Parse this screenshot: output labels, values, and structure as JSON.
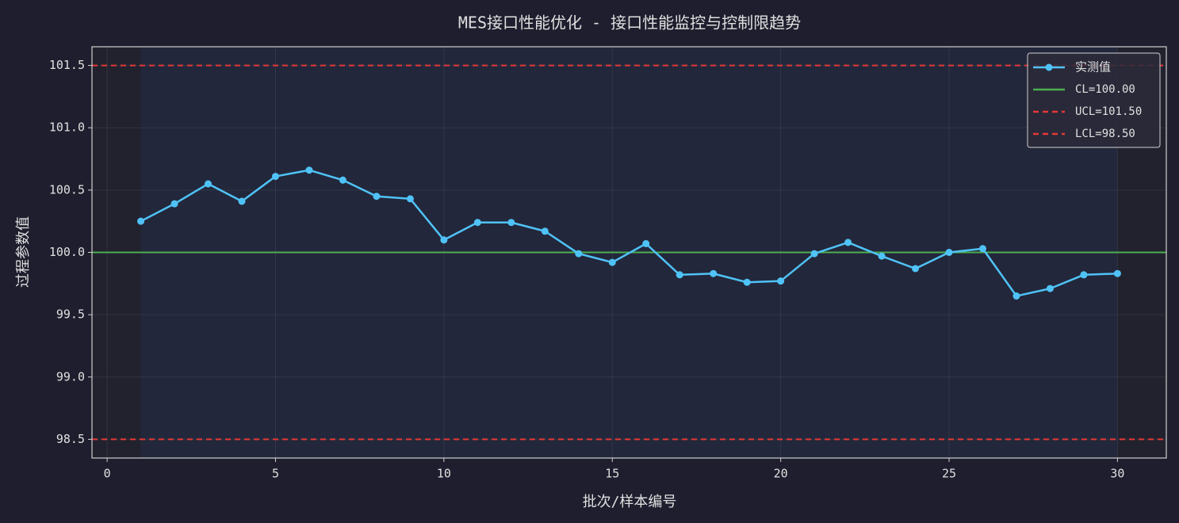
{
  "chart_data": {
    "type": "line",
    "title": "MES接口性能优化 - 接口性能监控与控制限趋势",
    "x_label": "批次/样本编号",
    "y_label": "过程参数值",
    "x": [
      1,
      2,
      3,
      4,
      5,
      6,
      7,
      8,
      9,
      10,
      11,
      12,
      13,
      14,
      15,
      16,
      17,
      18,
      19,
      20,
      21,
      22,
      23,
      24,
      25,
      26,
      27,
      28,
      29,
      30
    ],
    "series": [
      {
        "name": "实测值",
        "color": "#4fc3f7",
        "values": [
          100.25,
          100.39,
          100.55,
          100.41,
          100.61,
          100.66,
          100.58,
          100.45,
          100.43,
          100.1,
          100.24,
          100.24,
          100.17,
          99.99,
          99.92,
          100.07,
          99.82,
          99.83,
          99.76,
          99.77,
          99.99,
          100.08,
          99.97,
          99.87,
          100.0,
          100.03,
          99.65,
          99.71,
          99.82,
          99.83
        ]
      }
    ],
    "reference_lines": [
      {
        "name": "CL=100.00",
        "value": 100,
        "color": "#4caf50",
        "style": "solid"
      },
      {
        "name": "UCL=101.50",
        "value": 101.5,
        "color": "#e53935",
        "style": "dashed"
      },
      {
        "name": "LCL=98.50",
        "value": 98.5,
        "color": "#e53935",
        "style": "dashed"
      }
    ],
    "highlight_span": [
      1,
      30
    ],
    "xlim": [
      -0.45,
      31.45
    ],
    "ylim": [
      98.35,
      101.65
    ],
    "xticks": [
      0,
      5,
      10,
      15,
      20,
      25,
      30
    ],
    "yticks": [
      98.5,
      {
        "value": 99,
        "label": "99.0"
      },
      99.5,
      {
        "value": 100,
        "label": "100.0"
      },
      100.5,
      {
        "value": 101,
        "label": "101.0"
      },
      101.5
    ],
    "grid": true,
    "legend": "upper right"
  }
}
